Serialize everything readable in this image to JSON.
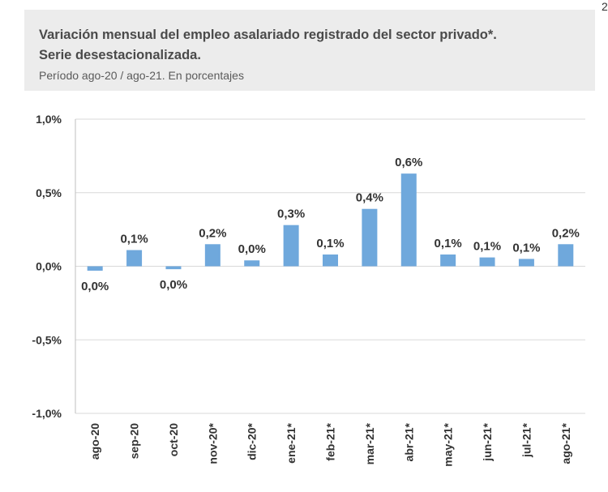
{
  "header": {
    "title_line1": "Variación mensual del empleo asalariado registrado del sector privado*.",
    "title_line2": "Serie desestacionalizada.",
    "subtitle": "Período ago-20 / ago-21. En porcentajes"
  },
  "stray_mark": "2",
  "chart_data": {
    "type": "bar",
    "title": "Variación mensual del empleo asalariado registrado del sector privado*. Serie desestacionalizada.",
    "subtitle": "Período ago-20 / ago-21. En porcentajes",
    "categories": [
      "ago-20",
      "sep-20",
      "oct-20",
      "nov-20*",
      "dic-20*",
      "ene-21*",
      "feb-21*",
      "mar-21*",
      "abr-21*",
      "may-21*",
      "jun-21*",
      "jul-21*",
      "ago-21*"
    ],
    "values": [
      -0.03,
      0.11,
      -0.02,
      0.15,
      0.04,
      0.28,
      0.08,
      0.39,
      0.63,
      0.08,
      0.06,
      0.05,
      0.15
    ],
    "data_labels": [
      "0,0%",
      "0,1%",
      "0,0%",
      "0,2%",
      "0,0%",
      "0,3%",
      "0,1%",
      "0,4%",
      "0,6%",
      "0,1%",
      "0,1%",
      "0,1%",
      "0,2%"
    ],
    "yticks": [
      1.0,
      0.5,
      0.0,
      -0.5,
      -1.0
    ],
    "ytick_labels": [
      "1,0%",
      "0,5%",
      "0,0%",
      "-0,5%",
      "-1,0%"
    ],
    "ylim": [
      -1.0,
      1.0
    ],
    "grid": true,
    "bar_color": "#6fa8dc",
    "grid_color": "#d9d9d9"
  }
}
